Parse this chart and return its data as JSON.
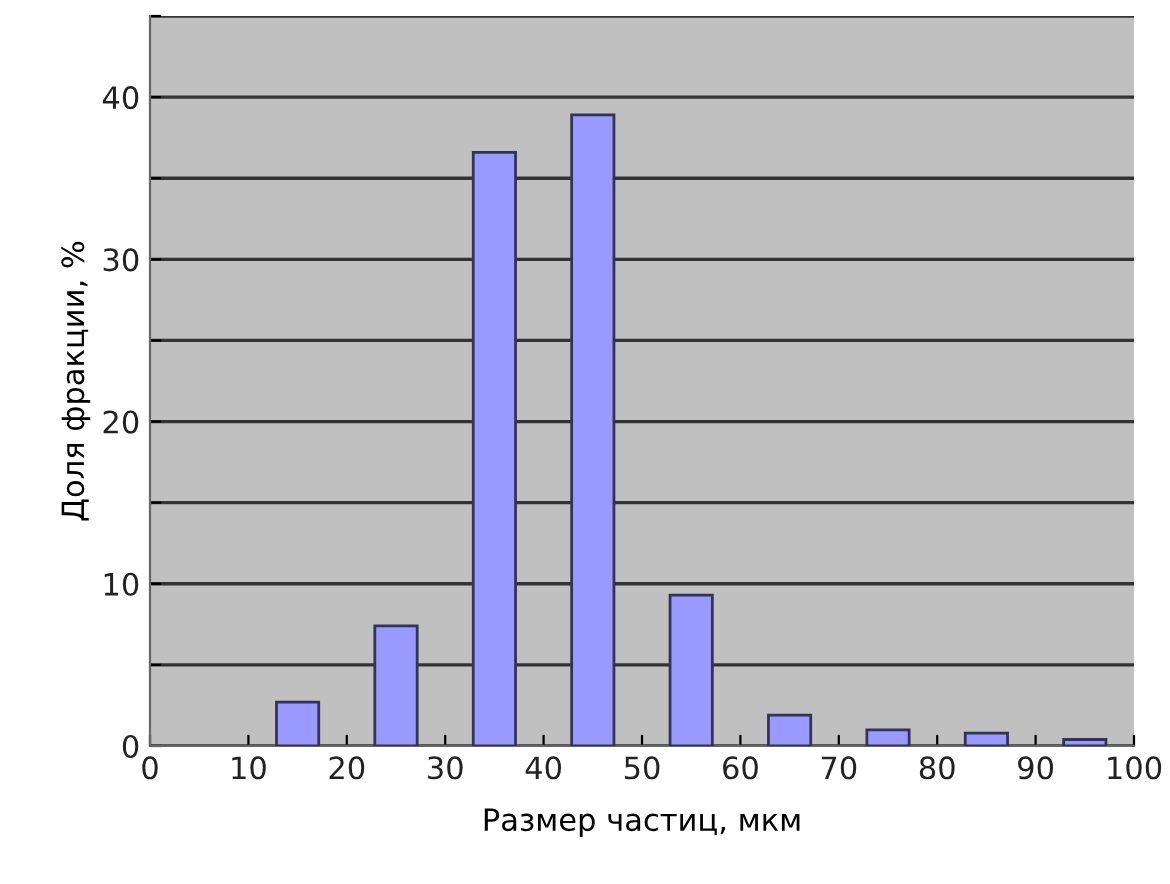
{
  "chart_data": {
    "type": "bar",
    "xlabel": "Размер частиц, мкм",
    "ylabel": "Доля фракции, %",
    "x": [
      15,
      25,
      35,
      45,
      55,
      65,
      75,
      85,
      95
    ],
    "values": [
      2.7,
      7.4,
      36.6,
      38.9,
      9.3,
      1.9,
      1.0,
      0.8,
      0.4
    ],
    "color": "#9999ff",
    "xlim": [
      0,
      100
    ],
    "xticks": [
      0,
      10,
      20,
      30,
      40,
      50,
      60,
      70,
      80,
      90,
      100
    ],
    "ylim": [
      0,
      45
    ],
    "yticks": [
      0,
      {
        "value": 5,
        "label": null
      },
      10,
      {
        "value": 15,
        "label": null
      },
      20,
      {
        "value": 25,
        "label": null
      },
      30,
      {
        "value": 35,
        "label": null
      },
      40,
      {
        "value": 45,
        "label": null
      }
    ],
    "grid": "y",
    "legend": false
  }
}
